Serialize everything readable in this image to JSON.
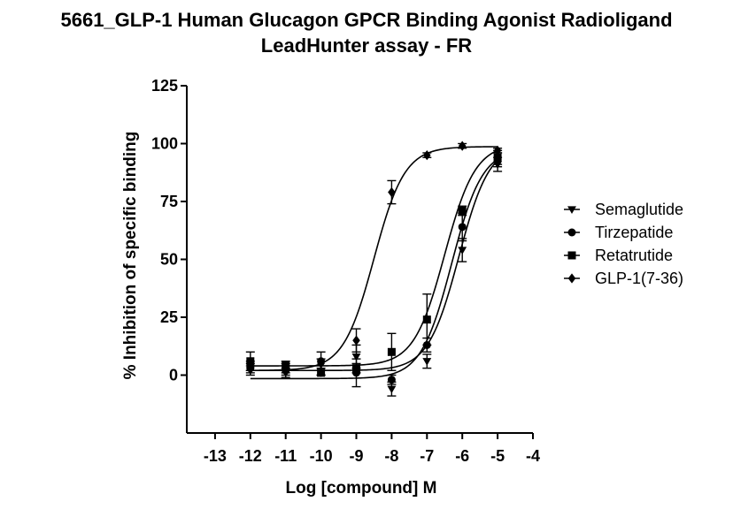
{
  "chart_data": {
    "type": "scatter",
    "title": "5661_GLP-1 Human Glucagon GPCR Binding Agonist Radioligand LeadHunter assay - FR",
    "title_lines": [
      "5661_GLP-1 Human Glucagon GPCR Binding Agonist Radioligand",
      "LeadHunter assay - FR"
    ],
    "xlabel": "Log [compound] M",
    "ylabel": "% Inhibition of specific binding",
    "xlim": [
      -13.8,
      -4
    ],
    "ylim": [
      -25,
      125
    ],
    "x_ticks": [
      -13,
      -12,
      -11,
      -10,
      -9,
      -8,
      -7,
      -6,
      -5,
      -4
    ],
    "x_tick_labels": [
      "-13",
      "-12",
      "-11",
      "-10",
      "-9",
      "-8",
      "-7",
      "-6",
      "-5",
      "-4"
    ],
    "y_ticks": [
      0,
      25,
      50,
      75,
      100,
      125
    ],
    "y_tick_labels": [
      "0",
      "25",
      "50",
      "75",
      "100",
      "125"
    ],
    "grid": false,
    "legend_position": "right",
    "series": [
      {
        "name": "Semaglutide",
        "marker": "triangle-down",
        "color": "#000000",
        "points": [
          {
            "x": -12,
            "y": 2,
            "err": 2
          },
          {
            "x": -11,
            "y": 1,
            "err": 2
          },
          {
            "x": -10,
            "y": 1,
            "err": 1
          },
          {
            "x": -9,
            "y": 8,
            "err": 5
          },
          {
            "x": -8,
            "y": -6,
            "err": 3
          },
          {
            "x": -7,
            "y": 6,
            "err": 3
          },
          {
            "x": -6,
            "y": 54,
            "err": 5
          },
          {
            "x": -5,
            "y": 91,
            "err": 3
          }
        ],
        "fit": {
          "bottom": 2,
          "top": 100,
          "log_ec50": -6.1,
          "hill": 1
        }
      },
      {
        "name": "Tirzepatide",
        "marker": "circle",
        "color": "#000000",
        "points": [
          {
            "x": -12,
            "y": 3,
            "err": 2
          },
          {
            "x": -11,
            "y": 2,
            "err": 2
          },
          {
            "x": -10,
            "y": 6,
            "err": 4
          },
          {
            "x": -9,
            "y": 1,
            "err": 6
          },
          {
            "x": -8,
            "y": -2,
            "err": 2
          },
          {
            "x": -7,
            "y": 13,
            "err": 3
          },
          {
            "x": -6,
            "y": 64,
            "err": 6
          },
          {
            "x": -5,
            "y": 93,
            "err": 3
          }
        ],
        "fit": {
          "bottom": -1.5,
          "top": 98,
          "log_ec50": -6.3,
          "hill": 1
        }
      },
      {
        "name": "Retatrutide",
        "marker": "square",
        "color": "#000000",
        "points": [
          {
            "x": -12,
            "y": 6,
            "err": 4
          },
          {
            "x": -11,
            "y": 4,
            "err": 2
          },
          {
            "x": -10,
            "y": 1,
            "err": 1
          },
          {
            "x": -9,
            "y": 3,
            "err": 2
          },
          {
            "x": -8,
            "y": 10,
            "err": 8
          },
          {
            "x": -7,
            "y": 24,
            "err": 11
          },
          {
            "x": -6,
            "y": 71,
            "err": 2
          },
          {
            "x": -5,
            "y": 94,
            "err": 3
          }
        ],
        "fit": {
          "bottom": 4,
          "top": 100,
          "log_ec50": -6.5,
          "hill": 1
        }
      },
      {
        "name": "GLP-1(7-36)",
        "marker": "diamond",
        "color": "#000000",
        "points": [
          {
            "x": -12,
            "y": 4,
            "err": 2
          },
          {
            "x": -11,
            "y": 3,
            "err": 2
          },
          {
            "x": -10,
            "y": 5,
            "err": 2
          },
          {
            "x": -9,
            "y": 15,
            "err": 5
          },
          {
            "x": -8,
            "y": 79,
            "err": 5
          },
          {
            "x": -7,
            "y": 95,
            "err": 1
          },
          {
            "x": -6,
            "y": 99,
            "err": 1
          },
          {
            "x": -5,
            "y": 97,
            "err": 1
          }
        ],
        "fit": {
          "bottom": 2,
          "top": 98.7,
          "log_ec50": -8.5,
          "hill": 1
        }
      }
    ]
  }
}
